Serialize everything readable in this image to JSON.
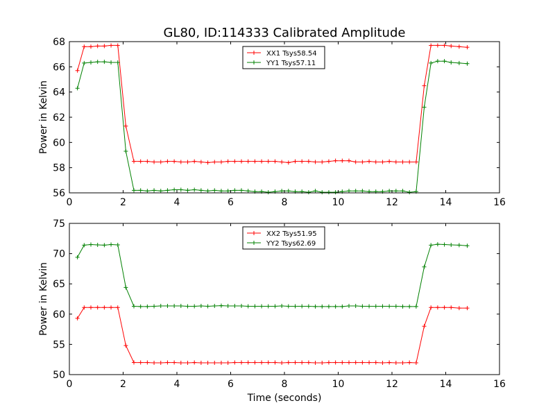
{
  "title": "GL80, ID:114333 Calibrated Amplitude",
  "xlabel": "Time (seconds)",
  "chart_data": [
    {
      "type": "line",
      "xlabel": "",
      "ylabel": "Power in Kelvin",
      "xlim": [
        0,
        16
      ],
      "ylim": [
        56,
        68
      ],
      "xticks": [
        "0",
        "2",
        "4",
        "6",
        "8",
        "10",
        "12",
        "14",
        "16"
      ],
      "yticks": [
        "56",
        "58",
        "60",
        "62",
        "64",
        "66",
        "68"
      ],
      "legend_position": "top-center",
      "grid": false,
      "x": [
        0.3,
        0.55,
        0.8,
        1.05,
        1.3,
        1.55,
        1.8,
        2.1,
        2.4,
        2.65,
        2.9,
        3.15,
        3.4,
        3.65,
        3.9,
        4.15,
        4.4,
        4.65,
        4.9,
        5.15,
        5.4,
        5.65,
        5.9,
        6.15,
        6.4,
        6.65,
        6.9,
        7.15,
        7.4,
        7.65,
        7.9,
        8.15,
        8.4,
        8.65,
        8.9,
        9.15,
        9.4,
        9.65,
        9.9,
        10.15,
        10.4,
        10.65,
        10.9,
        11.15,
        11.4,
        11.65,
        11.9,
        12.15,
        12.4,
        12.65,
        12.9,
        13.2,
        13.45,
        13.7,
        13.95,
        14.2,
        14.5,
        14.8
      ],
      "series": [
        {
          "name": "XX1 Tsys58.54",
          "color": "#ff0000",
          "values": [
            65.7,
            67.6,
            67.6,
            67.65,
            67.65,
            67.7,
            67.7,
            61.3,
            58.5,
            58.5,
            58.5,
            58.45,
            58.45,
            58.5,
            58.5,
            58.45,
            58.45,
            58.5,
            58.45,
            58.4,
            58.45,
            58.45,
            58.5,
            58.5,
            58.5,
            58.5,
            58.5,
            58.5,
            58.5,
            58.5,
            58.45,
            58.4,
            58.5,
            58.5,
            58.5,
            58.45,
            58.45,
            58.5,
            58.55,
            58.55,
            58.55,
            58.45,
            58.45,
            58.5,
            58.45,
            58.45,
            58.5,
            58.45,
            58.45,
            58.45,
            58.45,
            64.5,
            67.7,
            67.7,
            67.7,
            67.65,
            67.6,
            67.55
          ]
        },
        {
          "name": "YY1 Tsys57.11",
          "color": "#008000",
          "values": [
            64.3,
            66.3,
            66.35,
            66.4,
            66.4,
            66.35,
            66.35,
            59.3,
            56.2,
            56.2,
            56.15,
            56.2,
            56.15,
            56.2,
            56.25,
            56.25,
            56.2,
            56.25,
            56.2,
            56.15,
            56.2,
            56.15,
            56.15,
            56.2,
            56.2,
            56.15,
            56.1,
            56.1,
            56.05,
            56.1,
            56.15,
            56.15,
            56.1,
            56.1,
            56.05,
            56.15,
            56.05,
            56.05,
            56.05,
            56.1,
            56.15,
            56.15,
            56.15,
            56.1,
            56.1,
            56.1,
            56.15,
            56.15,
            56.15,
            56.05,
            56.1,
            62.8,
            66.3,
            66.45,
            66.45,
            66.35,
            66.3,
            66.25
          ]
        }
      ]
    },
    {
      "type": "line",
      "xlabel": "Time (seconds)",
      "ylabel": "Power in Kelvin",
      "xlim": [
        0,
        16
      ],
      "ylim": [
        50,
        75
      ],
      "xticks": [
        "0",
        "2",
        "4",
        "6",
        "8",
        "10",
        "12",
        "14",
        "16"
      ],
      "yticks": [
        "50",
        "55",
        "60",
        "65",
        "70",
        "75"
      ],
      "legend_position": "top-center",
      "grid": false,
      "x": [
        0.3,
        0.55,
        0.8,
        1.05,
        1.3,
        1.55,
        1.8,
        2.1,
        2.4,
        2.65,
        2.9,
        3.15,
        3.4,
        3.65,
        3.9,
        4.15,
        4.4,
        4.65,
        4.9,
        5.15,
        5.4,
        5.65,
        5.9,
        6.15,
        6.4,
        6.65,
        6.9,
        7.15,
        7.4,
        7.65,
        7.9,
        8.15,
        8.4,
        8.65,
        8.9,
        9.15,
        9.4,
        9.65,
        9.9,
        10.15,
        10.4,
        10.65,
        10.9,
        11.15,
        11.4,
        11.65,
        11.9,
        12.15,
        12.4,
        12.65,
        12.9,
        13.2,
        13.45,
        13.7,
        13.95,
        14.2,
        14.5,
        14.8
      ],
      "series": [
        {
          "name": "XX2 Tsys51.95",
          "color": "#ff0000",
          "values": [
            59.3,
            61.1,
            61.1,
            61.1,
            61.1,
            61.1,
            61.1,
            54.8,
            52.0,
            52.0,
            52.0,
            51.95,
            51.95,
            52.0,
            52.0,
            51.95,
            51.95,
            52.0,
            51.95,
            51.95,
            51.95,
            51.95,
            51.95,
            52.0,
            52.0,
            52.0,
            52.0,
            52.0,
            52.0,
            52.0,
            51.95,
            52.0,
            52.0,
            52.0,
            52.0,
            51.95,
            51.95,
            52.0,
            52.0,
            52.0,
            52.0,
            52.0,
            52.0,
            52.0,
            52.0,
            51.95,
            52.0,
            51.95,
            51.95,
            52.0,
            51.95,
            58.0,
            61.1,
            61.1,
            61.1,
            61.1,
            61.0,
            61.0
          ]
        },
        {
          "name": "YY2 Tsys62.69",
          "color": "#008000",
          "values": [
            69.4,
            71.4,
            71.5,
            71.45,
            71.4,
            71.5,
            71.45,
            64.4,
            61.3,
            61.25,
            61.25,
            61.3,
            61.35,
            61.35,
            61.35,
            61.35,
            61.3,
            61.3,
            61.35,
            61.3,
            61.35,
            61.4,
            61.35,
            61.35,
            61.35,
            61.3,
            61.3,
            61.3,
            61.3,
            61.3,
            61.35,
            61.3,
            61.3,
            61.3,
            61.3,
            61.25,
            61.25,
            61.25,
            61.25,
            61.25,
            61.35,
            61.35,
            61.3,
            61.3,
            61.3,
            61.3,
            61.3,
            61.3,
            61.25,
            61.25,
            61.25,
            67.8,
            71.4,
            71.55,
            71.5,
            71.45,
            71.4,
            71.3
          ]
        }
      ]
    }
  ]
}
